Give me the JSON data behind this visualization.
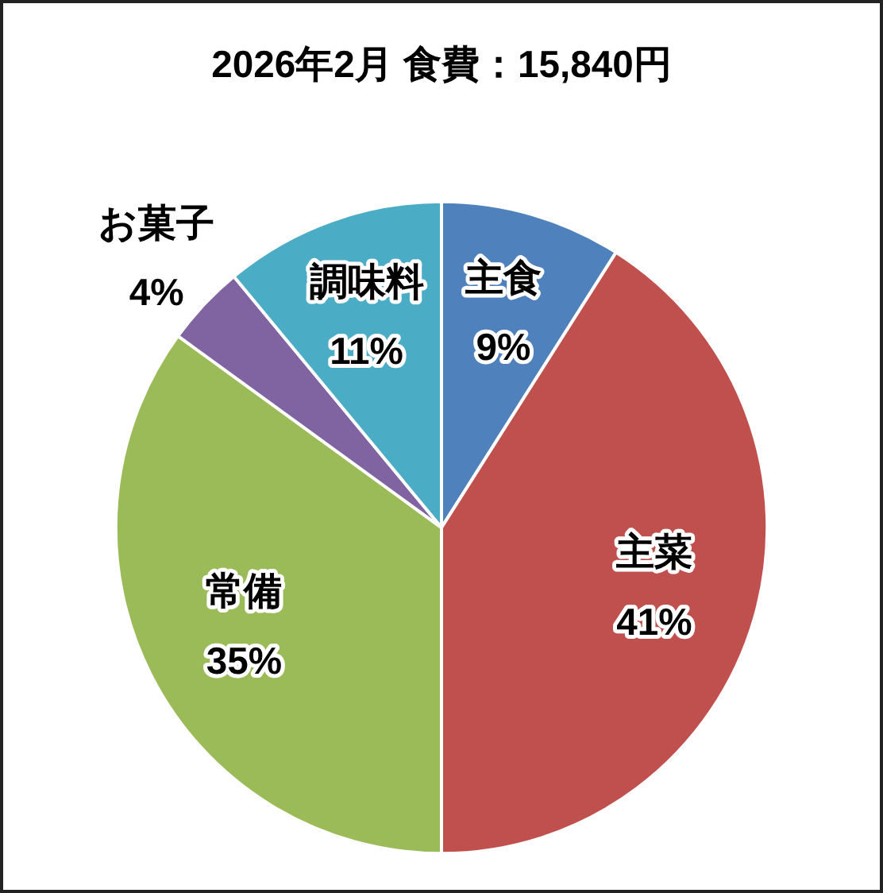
{
  "chart_data": {
    "type": "pie",
    "title": "2026年2月 食費：15,840円",
    "categories": [
      "主食",
      "主菜",
      "常備",
      "お菓子",
      "調味料"
    ],
    "values": [
      9,
      41,
      35,
      4,
      11
    ],
    "value_labels": [
      "9%",
      "41%",
      "35%",
      "4%",
      "11%"
    ],
    "colors": [
      "#4f81bd",
      "#c0504d",
      "#9bbb59",
      "#8064a2",
      "#4bacc6"
    ],
    "legend": false
  }
}
